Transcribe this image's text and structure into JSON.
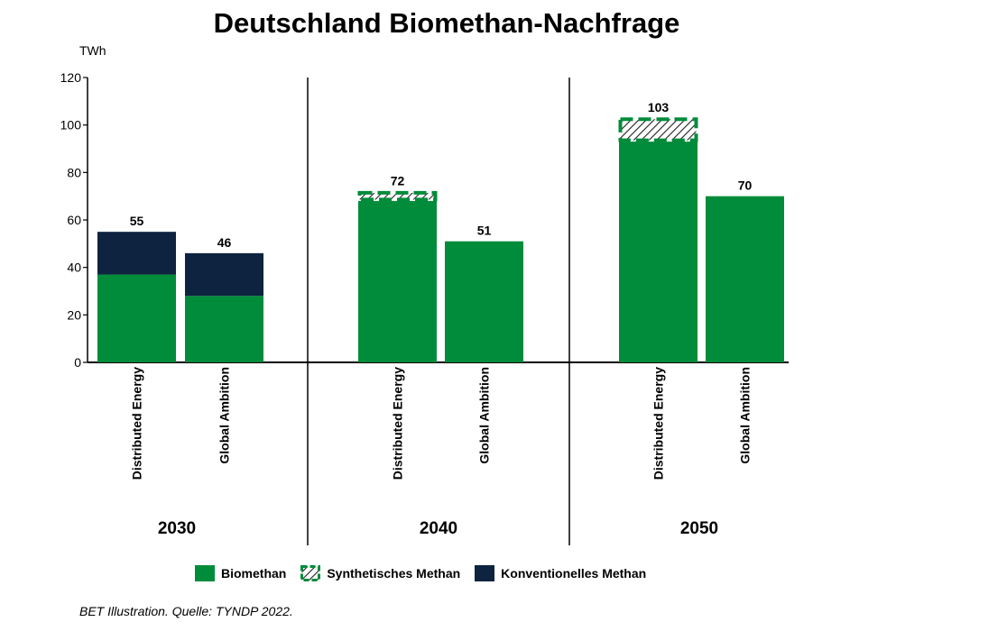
{
  "chart_data": {
    "type": "bar",
    "title": "Deutschland Biomethan-Nachfrage",
    "ylabel": "TWh",
    "ylim": [
      0,
      120
    ],
    "yticks": [
      0,
      20,
      40,
      60,
      80,
      100,
      120
    ],
    "groups": [
      {
        "label": "2030",
        "bars": [
          {
            "category": "Distributed Energy",
            "total": 55,
            "segments": {
              "biomethan": 37,
              "synthetisch": 0,
              "konventionell": 18
            }
          },
          {
            "category": "Global Ambition",
            "total": 46,
            "segments": {
              "biomethan": 28,
              "synthetisch": 0,
              "konventionell": 18
            }
          }
        ]
      },
      {
        "label": "2040",
        "bars": [
          {
            "category": "Distributed Energy",
            "total": 72,
            "segments": {
              "biomethan": 68,
              "synthetisch": 4,
              "konventionell": 0
            }
          },
          {
            "category": "Global Ambition",
            "total": 51,
            "segments": {
              "biomethan": 51,
              "synthetisch": 0,
              "konventionell": 0
            }
          }
        ]
      },
      {
        "label": "2050",
        "bars": [
          {
            "category": "Distributed Energy",
            "total": 103,
            "segments": {
              "biomethan": 93,
              "synthetisch": 10,
              "konventionell": 0
            }
          },
          {
            "category": "Global Ambition",
            "total": 70,
            "segments": {
              "biomethan": 70,
              "synthetisch": 0,
              "konventionell": 0
            }
          }
        ]
      }
    ],
    "series": [
      {
        "key": "biomethan",
        "name": "Biomethan",
        "color": "#008C3A"
      },
      {
        "key": "synthetisch",
        "name": "Synthetisches Methan",
        "color": "#008C3A",
        "pattern": "hatched"
      },
      {
        "key": "konventionell",
        "name": "Konventionelles Methan",
        "color": "#0D2340"
      }
    ],
    "legend_position": "bottom",
    "grid": false
  },
  "source": "BET Illustration. Quelle: TYNDP 2022."
}
